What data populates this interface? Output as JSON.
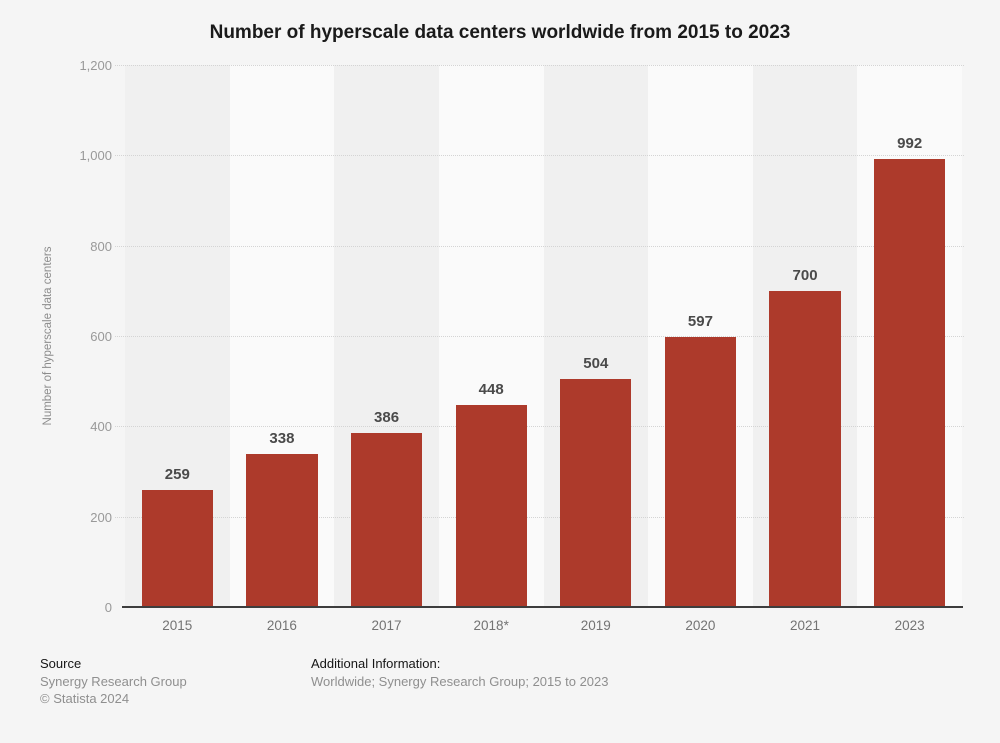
{
  "chart_data": {
    "type": "bar",
    "title": "Number of hyperscale data centers worldwide from 2015 to 2023",
    "categories": [
      "2015",
      "2016",
      "2017",
      "2018*",
      "2019",
      "2020",
      "2021",
      "2023"
    ],
    "values": [
      259,
      338,
      386,
      448,
      504,
      597,
      700,
      992
    ],
    "xlabel": "",
    "ylabel": "Number of hyperscale data centers",
    "ylim": [
      0,
      1200
    ],
    "ytick_step": 200,
    "ytick_labels": [
      "0",
      "200",
      "400",
      "600",
      "800",
      "1,000",
      "1,200"
    ],
    "grid": "horizontal-dotted",
    "legend_position": "none",
    "bar_color": "#ad3a2b",
    "band_color_odd": "#f0f0f0",
    "band_color_even": "#fafafa",
    "value_label_color": "#4a4a4a"
  },
  "footer": {
    "source_heading": "Source",
    "source_name": "Synergy Research Group",
    "copyright": "© Statista 2024",
    "additional_heading": "Additional Information:",
    "additional_text": "Worldwide; Synergy Research Group; 2015 to 2023"
  }
}
